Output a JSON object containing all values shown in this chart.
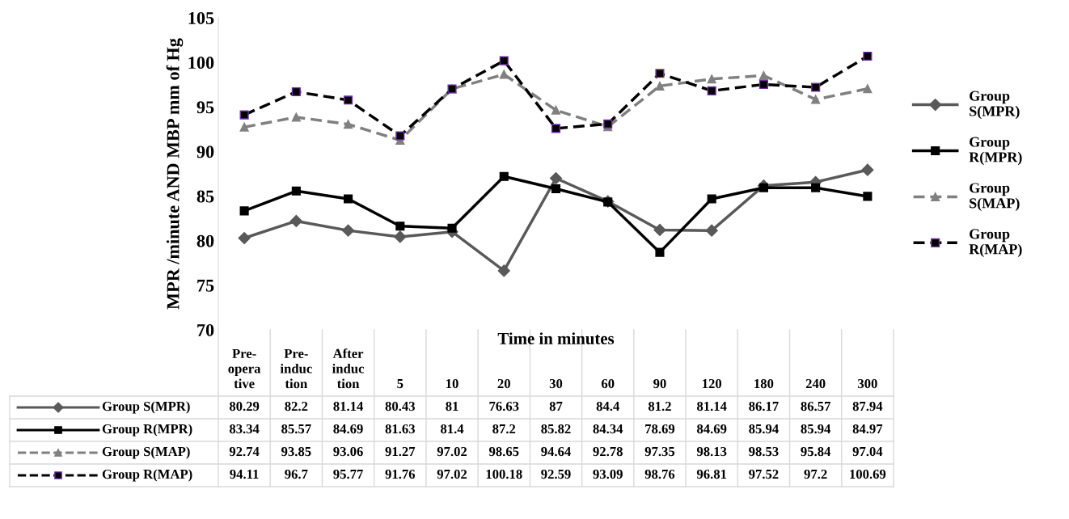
{
  "chart_data": {
    "type": "line",
    "ylabel": "MPR /minute AND MBP mm of Hg",
    "xlabel": "Time in minutes",
    "categories": [
      "Pre-operative",
      "Pre-induction",
      "After induction",
      "5",
      "10",
      "20",
      "30",
      "60",
      "90",
      "120",
      "180",
      "240",
      "300"
    ],
    "series": [
      {
        "name": "Group S(MPR)",
        "color": "#595959",
        "marker": "diamond",
        "line_style": "solid",
        "values": [
          80.29,
          82.2,
          81.14,
          80.43,
          81,
          76.63,
          87,
          84.4,
          81.2,
          81.14,
          86.17,
          86.57,
          87.94
        ]
      },
      {
        "name": "Group R(MPR)",
        "color": "#000000",
        "marker": "square",
        "line_style": "solid",
        "values": [
          83.34,
          85.57,
          84.69,
          81.63,
          81.4,
          87.2,
          85.82,
          84.34,
          78.69,
          84.69,
          85.94,
          85.94,
          84.97
        ]
      },
      {
        "name": "Group S(MAP)",
        "color": "#808080",
        "marker": "triangle",
        "line_style": "dashed",
        "values": [
          92.74,
          93.85,
          93.06,
          91.27,
          97.02,
          98.65,
          94.64,
          92.78,
          97.35,
          98.13,
          98.53,
          95.84,
          97.04
        ]
      },
      {
        "name": "Group R(MAP)",
        "color": "#000000",
        "marker": "square",
        "line_style": "dashed",
        "values": [
          94.11,
          96.7,
          95.77,
          91.76,
          97.02,
          100.18,
          92.59,
          93.09,
          98.76,
          96.81,
          97.52,
          97.2,
          100.69
        ]
      }
    ],
    "ylim": [
      70,
      105
    ],
    "yticks": [
      70,
      75,
      80,
      85,
      90,
      95,
      100,
      105
    ],
    "grid": false,
    "legend": "right",
    "data_labels": true
  }
}
